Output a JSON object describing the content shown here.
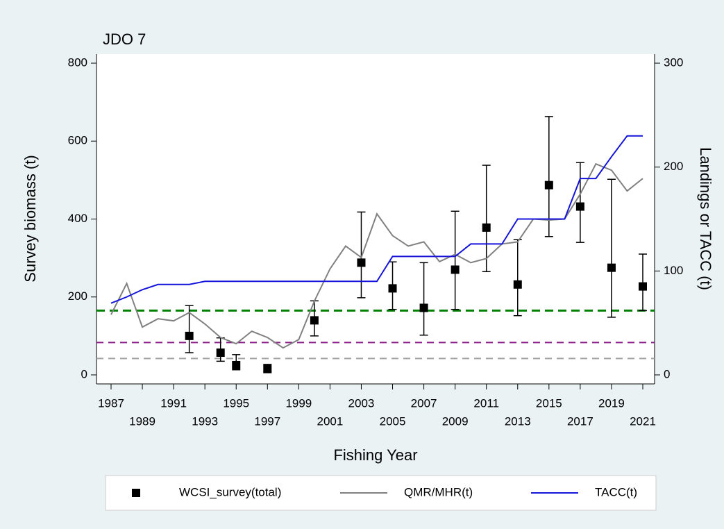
{
  "chart_data": {
    "type": "line",
    "title": "JDO 7",
    "x_label": "Fishing Year",
    "y_label": "Survey biomass (t)",
    "y2_label": "Landings or TACC (t)",
    "xlim": [
      1987,
      2021
    ],
    "xticks": [
      1987,
      1989,
      1991,
      1993,
      1995,
      1997,
      1999,
      2001,
      2003,
      2005,
      2007,
      2009,
      2011,
      2013,
      2015,
      2017,
      2019,
      2021
    ],
    "ylim": [
      0,
      800
    ],
    "yticks": [
      0,
      200,
      400,
      600,
      800
    ],
    "y2lim": [
      0,
      300
    ],
    "y2ticks": [
      0,
      100,
      200,
      300
    ],
    "reference_lines": [
      {
        "value": 165,
        "color": "#008000"
      },
      {
        "value": 83,
        "color": "#8b1a8b"
      },
      {
        "value": 42,
        "color": "#a0a0a0"
      }
    ],
    "series": [
      {
        "name": "WCSI_survey(total)",
        "color": "#000000",
        "kind": "points",
        "x": [
          1992,
          1994,
          1995,
          1997,
          2000,
          2003,
          2005,
          2007,
          2009,
          2011,
          2013,
          2015,
          2017,
          2019,
          2021
        ],
        "values": [
          100,
          57,
          25,
          15,
          140,
          288,
          222,
          172,
          270,
          378,
          232,
          487,
          432,
          275,
          227
        ],
        "lower": [
          57,
          35,
          13,
          8,
          100,
          198,
          168,
          102,
          168,
          265,
          152,
          355,
          340,
          148,
          165
        ],
        "upper": [
          178,
          95,
          52,
          27,
          190,
          418,
          290,
          288,
          420,
          538,
          347,
          663,
          545,
          502,
          310
        ]
      },
      {
        "name": "QMR/MHR(t)",
        "color": "#808080",
        "kind": "line",
        "axis": "y2",
        "x": [
          1987,
          1988,
          1989,
          1990,
          1991,
          1992,
          1993,
          1994,
          1995,
          1996,
          1997,
          1998,
          1999,
          2000,
          2001,
          2002,
          2003,
          2004,
          2005,
          2006,
          2007,
          2008,
          2009,
          2010,
          2011,
          2012,
          2013,
          2014,
          2015,
          2016,
          2017,
          2018,
          2019,
          2020,
          2021
        ],
        "values": [
          58,
          88,
          46,
          54,
          52,
          60,
          49,
          36,
          30,
          42,
          36,
          26,
          34,
          71,
          102,
          124,
          113,
          155,
          134,
          124,
          128,
          109,
          116,
          108,
          112,
          126,
          128,
          150,
          149,
          150,
          174,
          203,
          197,
          177,
          189
        ]
      },
      {
        "name": "TACC(t)",
        "color": "#1414dc",
        "kind": "line",
        "axis": "y2",
        "x": [
          1987,
          1988,
          1989,
          1990,
          1991,
          1992,
          1993,
          1994,
          1995,
          1996,
          1997,
          1998,
          1999,
          2000,
          2001,
          2002,
          2003,
          2004,
          2005,
          2006,
          2007,
          2008,
          2009,
          2010,
          2011,
          2012,
          2013,
          2014,
          2015,
          2016,
          2017,
          2018,
          2019,
          2020,
          2021
        ],
        "values": [
          69,
          75,
          82,
          87,
          87,
          87,
          90,
          90,
          90,
          90,
          90,
          90,
          90,
          90,
          90,
          90,
          90,
          90,
          114,
          114,
          114,
          114,
          114,
          126,
          126,
          126,
          150,
          150,
          150,
          150,
          189,
          189,
          210,
          230,
          230
        ]
      }
    ]
  }
}
